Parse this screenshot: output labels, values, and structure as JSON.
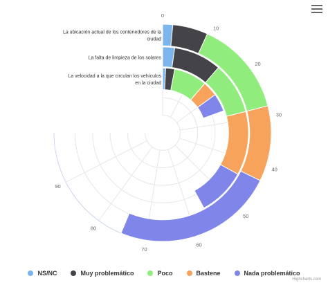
{
  "chart_data": {
    "type": "bar",
    "subtype": "radial-stacked-column",
    "categories": [
      "La ubicación actual de los contenedores de la ciudad",
      "La falta de limpieza de los solares",
      "La velocidad a la que circulan los vehículos en la ciudad"
    ],
    "series": [
      {
        "name": "NS/NC",
        "color": "#7cb5ec",
        "values": [
          2,
          3,
          1
        ]
      },
      {
        "name": "Muy problemático",
        "color": "#434348",
        "values": [
          7,
          12,
          3
        ]
      },
      {
        "name": "Poco",
        "color": "#90ed7d",
        "values": [
          19,
          13,
          11
        ]
      },
      {
        "name": "Bastene",
        "color": "#f7a35c",
        "values": [
          15,
          16,
          5
        ]
      },
      {
        "name": "Nada problemático",
        "color": "#8085e9",
        "values": [
          32,
          12,
          6
        ]
      }
    ],
    "axis": {
      "min": 0,
      "max": 100,
      "ticks": [
        0,
        10,
        20,
        30,
        40,
        50,
        60,
        70,
        80,
        90
      ],
      "start_angle_deg": 0,
      "end_angle_deg": 270
    },
    "grid": true,
    "legend_position": "bottom-center"
  },
  "legend": {
    "items": [
      {
        "label": "NS/NC",
        "color": "#7cb5ec"
      },
      {
        "label": "Muy problemático",
        "color": "#434348"
      },
      {
        "label": "Poco",
        "color": "#90ed7d"
      },
      {
        "label": "Bastene",
        "color": "#f7a35c"
      },
      {
        "label": "Nada problemático",
        "color": "#8085e9"
      }
    ]
  },
  "credits": "Highcharts.com"
}
